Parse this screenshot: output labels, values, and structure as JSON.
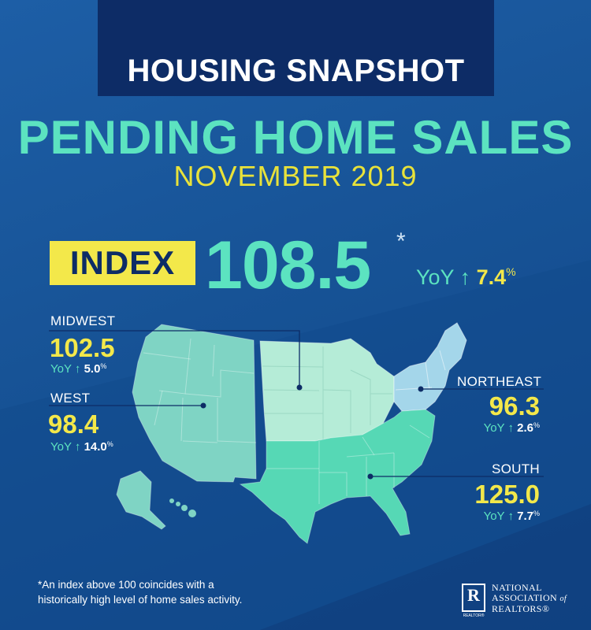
{
  "colors": {
    "background": "#175396",
    "header_box": "#0d2c66",
    "accent_teal": "#5ce3c0",
    "accent_yellow": "#f3e84a",
    "west": "#7fd4c4",
    "midwest": "#b5ecd7",
    "northeast": "#a4d6ea",
    "south": "#56d8b5"
  },
  "header": {
    "label": "HOUSING SNAPSHOT",
    "title": "PENDING HOME SALES",
    "subtitle": "NOVEMBER 2019"
  },
  "index": {
    "label": "INDEX",
    "value": "108.5",
    "asterisk": "*",
    "yoy_label": "YoY",
    "arrow": "↑",
    "yoy_change": "7.4",
    "yoy_sign": "%"
  },
  "regions": [
    {
      "name": "MIDWEST",
      "value": "102.5",
      "yoy_label": "YoY",
      "arrow": "↑",
      "yoy_change": "5.0",
      "yoy_sign": "%"
    },
    {
      "name": "WEST",
      "value": "98.4",
      "yoy_label": "YoY",
      "arrow": "↑",
      "yoy_change": "14.0",
      "yoy_sign": "%"
    },
    {
      "name": "NORTHEAST",
      "value": "96.3",
      "yoy_label": "YoY",
      "arrow": "↑",
      "yoy_change": "2.6",
      "yoy_sign": "%"
    },
    {
      "name": "SOUTH",
      "value": "125.0",
      "yoy_label": "YoY",
      "arrow": "↑",
      "yoy_change": "7.7",
      "yoy_sign": "%"
    }
  ],
  "footnote": {
    "line1": "*An index above 100 coincides with a",
    "line2": "historically high level of home sales activity."
  },
  "logo": {
    "mark": "R",
    "mark_caption": "REALTOR®",
    "line1": "NATIONAL",
    "line2_a": "ASSOCIATION",
    "line2_b": "of",
    "line3": "REALTORS®"
  }
}
